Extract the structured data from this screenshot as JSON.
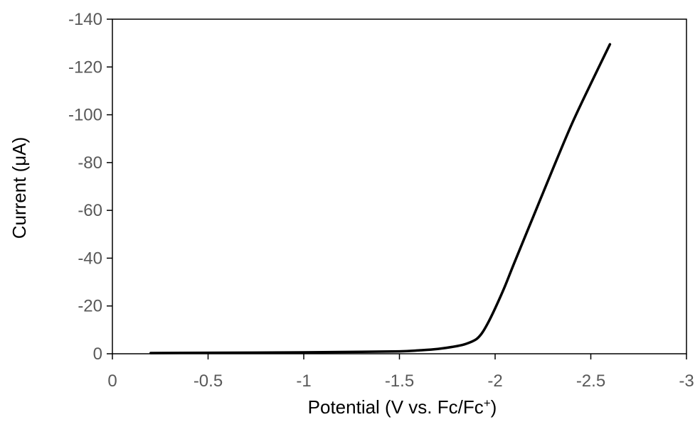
{
  "chart_data": {
    "type": "line",
    "title": "",
    "xlabel": "Potential (V vs. Fc/Fc",
    "xlabel_sup": "+",
    "xlabel_close": ")",
    "ylabel": "Current (μA)",
    "xlim": [
      0,
      -3
    ],
    "ylim": [
      0,
      -140
    ],
    "xticks": [
      0,
      -0.5,
      -1,
      -1.5,
      -2,
      -2.5,
      -3
    ],
    "xtick_labels": [
      "0",
      "-0.5",
      "-1",
      "-1.5",
      "-2",
      "-2.5",
      "-3"
    ],
    "yticks": [
      0,
      -20,
      -40,
      -60,
      -80,
      -100,
      -120,
      -140
    ],
    "ytick_labels": [
      "0",
      "-20",
      "-40",
      "-60",
      "-80",
      "-100",
      "-120",
      "-140"
    ],
    "grid": false,
    "legend": "none",
    "line_color": "#000000",
    "series": [
      {
        "x": [
          -0.2,
          -0.5,
          -1.0,
          -1.3,
          -1.5,
          -1.6,
          -1.7,
          -1.8,
          -1.85,
          -1.9,
          -1.93,
          -1.96,
          -2.0,
          -2.05,
          -2.1,
          -2.2,
          -2.3,
          -2.4,
          -2.5,
          -2.6
        ],
        "y": [
          -0.3,
          -0.4,
          -0.6,
          -0.8,
          -1.0,
          -1.4,
          -2.0,
          -3.2,
          -4.2,
          -6.0,
          -8.5,
          -12.5,
          -19.0,
          -28.0,
          -38.0,
          -57.5,
          -77.0,
          -96.0,
          -113.0,
          -129.5
        ]
      }
    ]
  }
}
